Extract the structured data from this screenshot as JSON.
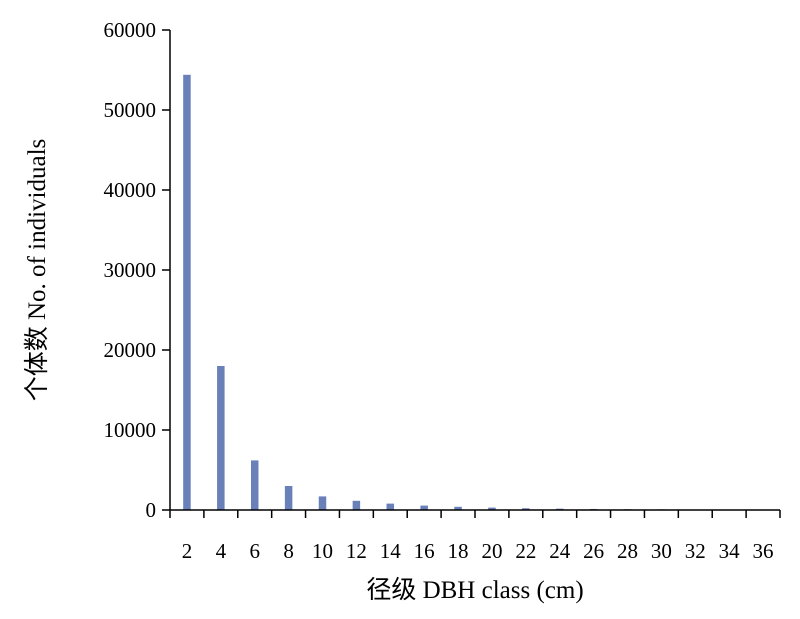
{
  "chart_data": {
    "type": "bar",
    "xlabel": "径级 DBH class (cm)",
    "ylabel": "个体数 No. of individuals",
    "categories": [
      "2",
      "4",
      "6",
      "8",
      "10",
      "12",
      "14",
      "16",
      "18",
      "20",
      "22",
      "24",
      "26",
      "28",
      "30",
      "32",
      "34",
      "36"
    ],
    "values": [
      54400,
      18000,
      6200,
      3000,
      1700,
      1150,
      800,
      550,
      400,
      300,
      220,
      170,
      130,
      100,
      80,
      60,
      50,
      40
    ],
    "ylim": [
      0,
      60000
    ],
    "yticks": [
      0,
      10000,
      20000,
      30000,
      40000,
      50000,
      60000
    ],
    "bar_color": "#6a80b8",
    "grid": false,
    "legend": "none"
  }
}
